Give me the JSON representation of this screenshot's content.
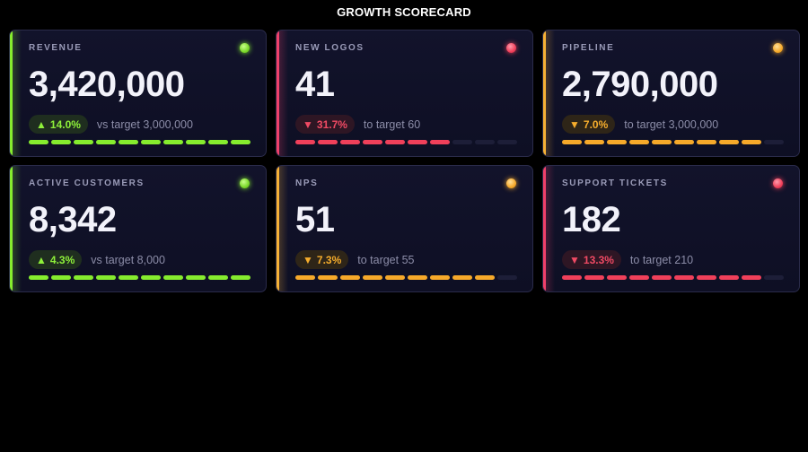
{
  "header": {
    "title": "GROWTH SCORECARD"
  },
  "cards": [
    {
      "label": "REVENUE",
      "value": "3,420,000",
      "status": "good",
      "arrow": "▲",
      "delta": "14.0%",
      "target_text": "vs target 3,000,000",
      "bar_total": 10,
      "bar_filled": 10,
      "status_icon": "status-dot-icon"
    },
    {
      "label": "NEW LOGOS",
      "value": "41",
      "status": "bad",
      "arrow": "▼",
      "delta": "31.7%",
      "target_text": "to target 60",
      "bar_total": 10,
      "bar_filled": 7,
      "status_icon": "status-dot-icon"
    },
    {
      "label": "PIPELINE",
      "value": "2,790,000",
      "status": "warn",
      "arrow": "▼",
      "delta": "7.0%",
      "target_text": "to target 3,000,000",
      "bar_total": 10,
      "bar_filled": 9,
      "status_icon": "status-dot-icon"
    },
    {
      "label": "ACTIVE CUSTOMERS",
      "value": "8,342",
      "status": "good",
      "arrow": "▲",
      "delta": "4.3%",
      "target_text": "vs target 8,000",
      "bar_total": 10,
      "bar_filled": 10,
      "status_icon": "status-dot-icon"
    },
    {
      "label": "NPS",
      "value": "51",
      "status": "warn",
      "arrow": "▼",
      "delta": "7.3%",
      "target_text": "to target 55",
      "bar_total": 10,
      "bar_filled": 9,
      "status_icon": "status-dot-icon"
    },
    {
      "label": "SUPPORT TICKETS",
      "value": "182",
      "status": "bad",
      "arrow": "▼",
      "delta": "13.3%",
      "target_text": "to target 210",
      "bar_total": 10,
      "bar_filled": 9,
      "status_icon": "status-dot-icon"
    }
  ],
  "colors": {
    "good": "#86ec2e",
    "bad": "#f0405a",
    "warn": "#f6a92a",
    "background": "#000000",
    "card": "#12132b"
  }
}
